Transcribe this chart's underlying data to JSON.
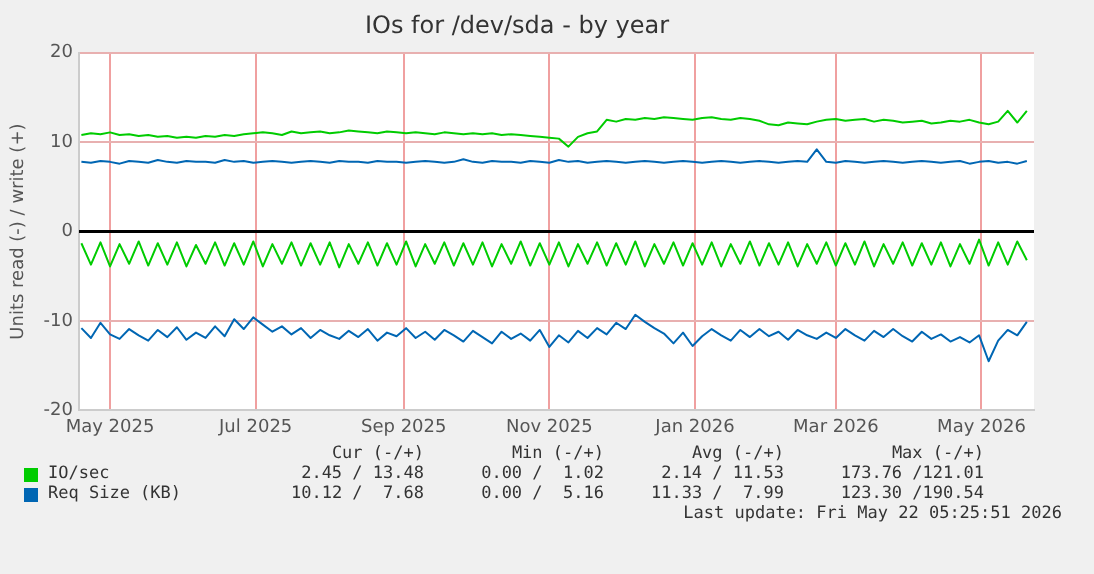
{
  "chart_data": {
    "type": "line",
    "title": "IOs for /dev/sda - by year",
    "ylabel": "Units read (-) / write (+)",
    "x": [
      "2025-04-19",
      "2025-04-23",
      "2025-04-27",
      "2025-05-01",
      "2025-05-05",
      "2025-05-09",
      "2025-05-13",
      "2025-05-17",
      "2025-05-21",
      "2025-05-25",
      "2025-05-29",
      "2025-06-02",
      "2025-06-06",
      "2025-06-10",
      "2025-06-14",
      "2025-06-18",
      "2025-06-22",
      "2025-06-26",
      "2025-06-30",
      "2025-07-04",
      "2025-07-08",
      "2025-07-12",
      "2025-07-16",
      "2025-07-20",
      "2025-07-24",
      "2025-07-28",
      "2025-08-01",
      "2025-08-05",
      "2025-08-09",
      "2025-08-13",
      "2025-08-17",
      "2025-08-21",
      "2025-08-25",
      "2025-08-29",
      "2025-09-02",
      "2025-09-06",
      "2025-09-10",
      "2025-09-14",
      "2025-09-18",
      "2025-09-22",
      "2025-09-26",
      "2025-09-30",
      "2025-10-04",
      "2025-10-08",
      "2025-10-12",
      "2025-10-16",
      "2025-10-20",
      "2025-10-24",
      "2025-10-28",
      "2025-11-01",
      "2025-11-05",
      "2025-11-09",
      "2025-11-13",
      "2025-11-17",
      "2025-11-21",
      "2025-11-25",
      "2025-11-29",
      "2025-12-03",
      "2025-12-07",
      "2025-12-11",
      "2025-12-15",
      "2025-12-19",
      "2025-12-23",
      "2025-12-27",
      "2025-12-31",
      "2026-01-04",
      "2026-01-08",
      "2026-01-12",
      "2026-01-16",
      "2026-01-20",
      "2026-01-24",
      "2026-01-28",
      "2026-02-01",
      "2026-02-05",
      "2026-02-09",
      "2026-02-13",
      "2026-02-17",
      "2026-02-21",
      "2026-02-25",
      "2026-03-01",
      "2026-03-05",
      "2026-03-09",
      "2026-03-13",
      "2026-03-17",
      "2026-03-21",
      "2026-03-25",
      "2026-03-29",
      "2026-04-02",
      "2026-04-06",
      "2026-04-10",
      "2026-04-14",
      "2026-04-18",
      "2026-04-22",
      "2026-04-26",
      "2026-04-30",
      "2026-05-04",
      "2026-05-08",
      "2026-05-12",
      "2026-05-16",
      "2026-05-20"
    ],
    "series": [
      {
        "name": "IO/sec",
        "color": "#00cc00",
        "values": [
          10.8,
          11.0,
          10.9,
          11.1,
          10.8,
          10.9,
          10.7,
          10.8,
          10.6,
          10.7,
          10.5,
          10.6,
          10.5,
          10.7,
          10.6,
          10.8,
          10.7,
          10.9,
          11.0,
          11.1,
          11.0,
          10.8,
          11.2,
          11.0,
          11.1,
          11.2,
          11.0,
          11.1,
          11.3,
          11.2,
          11.1,
          11.0,
          11.2,
          11.1,
          11.0,
          11.1,
          11.0,
          10.9,
          11.1,
          11.0,
          10.9,
          11.0,
          10.9,
          11.0,
          10.8,
          10.9,
          10.8,
          10.7,
          10.6,
          10.5,
          10.4,
          9.5,
          10.6,
          11.0,
          11.2,
          12.5,
          12.3,
          12.6,
          12.5,
          12.7,
          12.6,
          12.8,
          12.7,
          12.6,
          12.5,
          12.7,
          12.8,
          12.6,
          12.5,
          12.7,
          12.6,
          12.4,
          12.0,
          11.9,
          12.2,
          12.1,
          12.0,
          12.3,
          12.5,
          12.6,
          12.4,
          12.5,
          12.6,
          12.3,
          12.5,
          12.4,
          12.2,
          12.3,
          12.4,
          12.1,
          12.2,
          12.4,
          12.3,
          12.5,
          12.2,
          12.0,
          12.3,
          13.5,
          12.2,
          13.5
        ]
      },
      {
        "color": "#00cc00",
        "values": [
          -1.3,
          -3.7,
          -1.2,
          -3.9,
          -1.4,
          -3.6,
          -1.1,
          -3.8,
          -1.3,
          -3.7,
          -1.2,
          -3.9,
          -1.5,
          -3.6,
          -1.2,
          -3.8,
          -1.3,
          -3.7,
          -1.1,
          -3.9,
          -1.4,
          -3.6,
          -1.2,
          -3.8,
          -1.3,
          -3.7,
          -1.2,
          -4.0,
          -1.4,
          -3.6,
          -1.2,
          -3.8,
          -1.3,
          -3.7,
          -1.1,
          -3.9,
          -1.4,
          -3.6,
          -1.2,
          -3.8,
          -1.3,
          -3.7,
          -1.2,
          -3.9,
          -1.4,
          -3.6,
          -1.1,
          -3.8,
          -1.3,
          -3.7,
          -1.2,
          -3.9,
          -1.4,
          -3.6,
          -1.2,
          -3.8,
          -1.3,
          -3.7,
          -1.1,
          -3.9,
          -1.4,
          -3.6,
          -1.2,
          -3.8,
          -1.3,
          -3.7,
          -1.2,
          -3.9,
          -1.4,
          -3.6,
          -1.1,
          -3.8,
          -1.3,
          -3.7,
          -1.2,
          -3.9,
          -1.4,
          -3.6,
          -1.2,
          -3.8,
          -1.3,
          -3.7,
          -1.1,
          -3.9,
          -1.4,
          -3.6,
          -1.2,
          -3.8,
          -1.3,
          -3.7,
          -1.2,
          -3.9,
          -1.4,
          -3.6,
          -0.9,
          -3.8,
          -1.2,
          -3.7,
          -1.1,
          -3.2
        ]
      },
      {
        "name": "Req Size (KB)",
        "color": "#0066b3",
        "values": [
          7.8,
          7.7,
          7.9,
          7.8,
          7.6,
          7.9,
          7.8,
          7.7,
          8.0,
          7.8,
          7.7,
          7.9,
          7.8,
          7.8,
          7.7,
          8.0,
          7.8,
          7.9,
          7.7,
          7.8,
          7.9,
          7.8,
          7.7,
          7.8,
          7.9,
          7.8,
          7.7,
          7.9,
          7.8,
          7.8,
          7.7,
          7.9,
          7.8,
          7.8,
          7.7,
          7.8,
          7.9,
          7.8,
          7.7,
          7.8,
          8.1,
          7.8,
          7.7,
          7.9,
          7.8,
          7.8,
          7.7,
          7.9,
          7.8,
          7.7,
          8.0,
          7.8,
          7.9,
          7.7,
          7.8,
          7.9,
          7.8,
          7.7,
          7.8,
          7.9,
          7.8,
          7.7,
          7.8,
          7.9,
          7.8,
          7.7,
          7.8,
          7.9,
          7.8,
          7.7,
          7.8,
          7.9,
          7.8,
          7.7,
          7.8,
          7.9,
          7.8,
          9.2,
          7.8,
          7.7,
          7.9,
          7.8,
          7.7,
          7.8,
          7.9,
          7.8,
          7.7,
          7.8,
          7.9,
          7.8,
          7.7,
          7.8,
          7.9,
          7.6,
          7.8,
          7.9,
          7.7,
          7.8,
          7.6,
          7.9
        ]
      },
      {
        "color": "#0066b3",
        "values": [
          -10.8,
          -11.9,
          -10.2,
          -11.5,
          -12.0,
          -10.9,
          -11.6,
          -12.2,
          -11.0,
          -11.8,
          -10.7,
          -12.1,
          -11.3,
          -11.9,
          -10.6,
          -11.7,
          -9.8,
          -10.9,
          -9.6,
          -10.4,
          -11.2,
          -10.6,
          -11.5,
          -10.8,
          -11.9,
          -11.0,
          -11.6,
          -12.0,
          -11.1,
          -11.8,
          -10.9,
          -12.2,
          -11.3,
          -11.7,
          -10.8,
          -11.9,
          -11.2,
          -12.1,
          -11.0,
          -11.6,
          -12.3,
          -11.1,
          -11.8,
          -12.5,
          -11.2,
          -12.0,
          -11.4,
          -12.2,
          -11.0,
          -12.9,
          -11.6,
          -12.4,
          -11.1,
          -11.9,
          -10.8,
          -11.5,
          -10.2,
          -10.9,
          -9.3,
          -10.1,
          -10.8,
          -11.4,
          -12.5,
          -11.3,
          -12.8,
          -11.7,
          -10.9,
          -11.6,
          -12.2,
          -11.0,
          -11.8,
          -10.9,
          -11.7,
          -11.2,
          -12.1,
          -11.0,
          -11.6,
          -12.0,
          -11.3,
          -11.9,
          -10.9,
          -11.6,
          -12.2,
          -11.1,
          -11.8,
          -10.9,
          -11.7,
          -12.3,
          -11.2,
          -12.0,
          -11.5,
          -12.3,
          -11.8,
          -12.4,
          -11.6,
          -14.5,
          -12.2,
          -11.0,
          -11.6,
          -10.1
        ]
      }
    ],
    "xlim": [
      "2025-04-18",
      "2026-05-23"
    ],
    "xticks": [
      {
        "value": "2025-05-01",
        "label": "May 2025"
      },
      {
        "value": "2025-07-01",
        "label": "Jul 2025"
      },
      {
        "value": "2025-09-01",
        "label": "Sep 2025"
      },
      {
        "value": "2025-11-01",
        "label": "Nov 2025"
      },
      {
        "value": "2026-01-01",
        "label": "Jan 2026"
      },
      {
        "value": "2026-03-01",
        "label": "Mar 2026"
      },
      {
        "value": "2026-05-01",
        "label": "May 2026"
      }
    ],
    "ylim": [
      -20,
      20
    ],
    "yticks": [
      -20,
      -10,
      0,
      10,
      20
    ],
    "ref_lines": [
      {
        "axis": "y",
        "value": 0,
        "color": "#000000"
      }
    ],
    "grid": true,
    "legend": "bottom",
    "marker": "none",
    "line_style": "solid",
    "annotations": [
      "Cur (-/+)",
      "Min (-/+)",
      "Avg (-/+)",
      "Max (-/+)",
      "2.45 / 13.48",
      "0.00 /  1.02",
      "2.14 / 11.53",
      "173.76 /121.01",
      "10.12 /  7.68",
      "0.00 /  5.16",
      "11.33 /  7.99",
      "123.30 /190.54",
      "Last update: Fri May 22 05:25:51 2026"
    ]
  }
}
